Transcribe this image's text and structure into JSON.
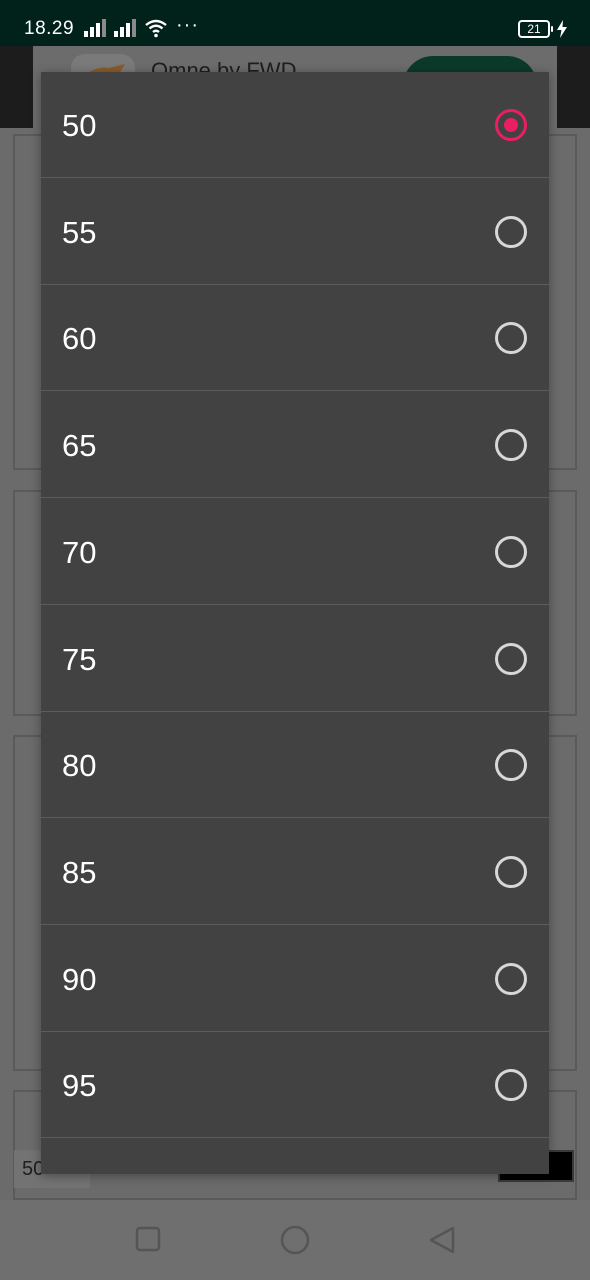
{
  "status_bar": {
    "time": "18.29",
    "more": "···",
    "battery_level": "21"
  },
  "ad_banner": {
    "title": "Omne by FWD"
  },
  "background": {
    "zoom_value": "50"
  },
  "dialog": {
    "selected": "50",
    "options": [
      "50",
      "55",
      "60",
      "65",
      "70",
      "75",
      "80",
      "85",
      "90",
      "95",
      ""
    ]
  },
  "colors": {
    "accent": "#e91e63",
    "dialog_bg": "#424242",
    "status_bar_bg": "#01221b"
  },
  "icons": {
    "signal_1": "cell-signal-icon",
    "signal_2": "cell-signal-icon",
    "wifi": "wifi-icon",
    "charging": "charging-bolt-icon",
    "nav_recents": "square-recents-icon",
    "nav_home": "circle-home-icon",
    "nav_back": "triangle-back-icon"
  }
}
